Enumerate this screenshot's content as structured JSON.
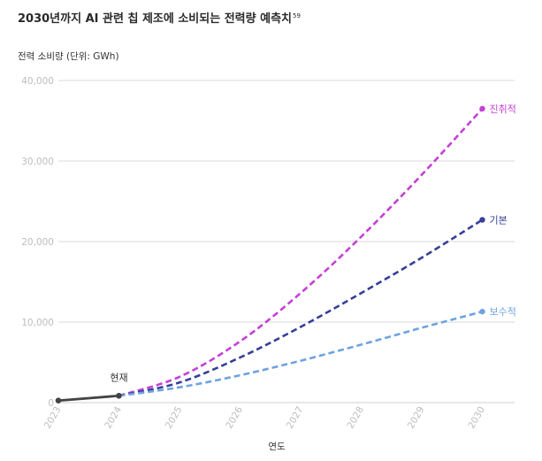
{
  "chart_data": {
    "type": "line",
    "title": "2030년까지 AI 관련 칩 제조에 소비되는 전력량 예측치",
    "title_superscript": "59",
    "ylabel": "전력 소비량 (단위: GWh)",
    "xlabel": "연도",
    "x": [
      "2023",
      "2024",
      "2025",
      "2026",
      "2027",
      "2028",
      "2029",
      "2030"
    ],
    "ylim": [
      0,
      40000
    ],
    "yticks": [
      0,
      10000,
      20000,
      30000,
      40000
    ],
    "ytick_labels": [
      "0",
      "10,000",
      "20,000",
      "30,000",
      "40,000"
    ],
    "grid": true,
    "legend": "labels at line ends",
    "actual": {
      "values": [
        {
          "x": "2023",
          "y": 250
        },
        {
          "x": "2024",
          "y": 850
        }
      ],
      "color": "#444444",
      "annotation": "현재"
    },
    "series": [
      {
        "name": "진취적",
        "color": "#c341d4",
        "values": [
          {
            "x": "2024",
            "y": 850
          },
          {
            "x": "2025",
            "y": 3200
          },
          {
            "x": "2026",
            "y": 7600
          },
          {
            "x": "2027",
            "y": 13600
          },
          {
            "x": "2028",
            "y": 20600
          },
          {
            "x": "2029",
            "y": 28300
          },
          {
            "x": "2030",
            "y": 36500
          }
        ]
      },
      {
        "name": "기본",
        "color": "#363f98",
        "values": [
          {
            "x": "2024",
            "y": 850
          },
          {
            "x": "2025",
            "y": 2500
          },
          {
            "x": "2026",
            "y": 5600
          },
          {
            "x": "2027",
            "y": 9400
          },
          {
            "x": "2028",
            "y": 13600
          },
          {
            "x": "2029",
            "y": 18000
          },
          {
            "x": "2030",
            "y": 22700
          }
        ]
      },
      {
        "name": "보수적",
        "color": "#6ea3df",
        "values": [
          {
            "x": "2024",
            "y": 850
          },
          {
            "x": "2025",
            "y": 1900
          },
          {
            "x": "2026",
            "y": 3400
          },
          {
            "x": "2027",
            "y": 5200
          },
          {
            "x": "2028",
            "y": 7200
          },
          {
            "x": "2029",
            "y": 9300
          },
          {
            "x": "2030",
            "y": 11300
          }
        ]
      }
    ]
  }
}
